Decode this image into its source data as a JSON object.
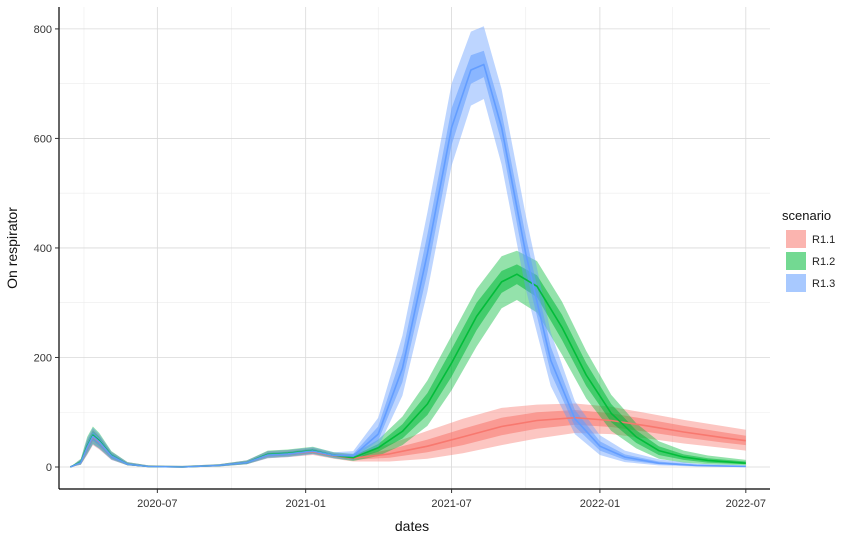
{
  "chart_data": {
    "type": "area",
    "xlabel": "dates",
    "ylabel": "On respirator",
    "x_range": [
      "2020-03-01",
      "2022-07-31"
    ],
    "ylim": [
      0,
      840
    ],
    "x_ticks": [
      "2020-07-01",
      "2021-01-01",
      "2021-07-01",
      "2022-01-01",
      "2022-07-01"
    ],
    "x_tick_labels": [
      "2020-07",
      "2021-01",
      "2021-07",
      "2022-01",
      "2022-07"
    ],
    "y_ticks": [
      0,
      200,
      400,
      600,
      800
    ],
    "y_tick_labels": [
      "0",
      "200",
      "400",
      "600",
      "800"
    ],
    "grid": true,
    "legend": {
      "title": "scenario",
      "placement": "right"
    },
    "series": [
      {
        "name": "R1.1",
        "color": "#F8766D",
        "points": [
          {
            "date": "2020-03-15",
            "median": 0,
            "inner_lo": 0,
            "inner_hi": 0,
            "outer_lo": 0,
            "outer_hi": 0
          },
          {
            "date": "2020-03-28",
            "median": 8,
            "inner_lo": 6,
            "inner_hi": 11,
            "outer_lo": 4,
            "outer_hi": 14
          },
          {
            "date": "2020-04-05",
            "median": 35,
            "inner_lo": 28,
            "inner_hi": 42,
            "outer_lo": 22,
            "outer_hi": 50
          },
          {
            "date": "2020-04-12",
            "median": 55,
            "inner_lo": 48,
            "inner_hi": 62,
            "outer_lo": 40,
            "outer_hi": 70
          },
          {
            "date": "2020-04-20",
            "median": 45,
            "inner_lo": 38,
            "inner_hi": 52,
            "outer_lo": 32,
            "outer_hi": 58
          },
          {
            "date": "2020-05-05",
            "median": 20,
            "inner_lo": 16,
            "inner_hi": 24,
            "outer_lo": 13,
            "outer_hi": 28
          },
          {
            "date": "2020-05-25",
            "median": 5,
            "inner_lo": 4,
            "inner_hi": 7,
            "outer_lo": 3,
            "outer_hi": 9
          },
          {
            "date": "2020-06-20",
            "median": 1,
            "inner_lo": 0,
            "inner_hi": 2,
            "outer_lo": 0,
            "outer_hi": 3
          },
          {
            "date": "2020-08-01",
            "median": 0,
            "inner_lo": 0,
            "inner_hi": 1,
            "outer_lo": 0,
            "outer_hi": 2
          },
          {
            "date": "2020-09-15",
            "median": 3,
            "inner_lo": 2,
            "inner_hi": 4,
            "outer_lo": 1,
            "outer_hi": 5
          },
          {
            "date": "2020-10-20",
            "median": 8,
            "inner_lo": 6,
            "inner_hi": 10,
            "outer_lo": 5,
            "outer_hi": 12
          },
          {
            "date": "2020-11-15",
            "median": 22,
            "inner_lo": 19,
            "inner_hi": 25,
            "outer_lo": 16,
            "outer_hi": 29
          },
          {
            "date": "2020-12-10",
            "median": 24,
            "inner_lo": 21,
            "inner_hi": 27,
            "outer_lo": 18,
            "outer_hi": 31
          },
          {
            "date": "2021-01-10",
            "median": 28,
            "inner_lo": 25,
            "inner_hi": 31,
            "outer_lo": 22,
            "outer_hi": 35
          },
          {
            "date": "2021-02-05",
            "median": 20,
            "inner_lo": 18,
            "inner_hi": 23,
            "outer_lo": 15,
            "outer_hi": 26
          },
          {
            "date": "2021-03-01",
            "median": 16,
            "inner_lo": 13,
            "inner_hi": 19,
            "outer_lo": 10,
            "outer_hi": 23
          },
          {
            "date": "2021-04-15",
            "median": 24,
            "inner_lo": 17,
            "inner_hi": 32,
            "outer_lo": 10,
            "outer_hi": 42
          },
          {
            "date": "2021-06-01",
            "median": 38,
            "inner_lo": 27,
            "inner_hi": 50,
            "outer_lo": 15,
            "outer_hi": 66
          },
          {
            "date": "2021-07-15",
            "median": 55,
            "inner_lo": 40,
            "inner_hi": 70,
            "outer_lo": 25,
            "outer_hi": 88
          },
          {
            "date": "2021-09-01",
            "median": 74,
            "inner_lo": 58,
            "inner_hi": 90,
            "outer_lo": 40,
            "outer_hi": 108
          },
          {
            "date": "2021-10-15",
            "median": 85,
            "inner_lo": 70,
            "inner_hi": 100,
            "outer_lo": 52,
            "outer_hi": 114
          },
          {
            "date": "2021-12-01",
            "median": 90,
            "inner_lo": 77,
            "inner_hi": 104,
            "outer_lo": 62,
            "outer_hi": 116
          },
          {
            "date": "2022-01-15",
            "median": 85,
            "inner_lo": 73,
            "inner_hi": 98,
            "outer_lo": 60,
            "outer_hi": 110
          },
          {
            "date": "2022-03-01",
            "median": 75,
            "inner_lo": 64,
            "inner_hi": 87,
            "outer_lo": 52,
            "outer_hi": 98
          },
          {
            "date": "2022-04-15",
            "median": 64,
            "inner_lo": 54,
            "inner_hi": 75,
            "outer_lo": 43,
            "outer_hi": 86
          },
          {
            "date": "2022-06-01",
            "median": 54,
            "inner_lo": 45,
            "inner_hi": 64,
            "outer_lo": 35,
            "outer_hi": 75
          },
          {
            "date": "2022-07-01",
            "median": 48,
            "inner_lo": 40,
            "inner_hi": 57,
            "outer_lo": 30,
            "outer_hi": 68
          }
        ]
      },
      {
        "name": "R1.2",
        "color": "#00BA38",
        "points": [
          {
            "date": "2020-03-15",
            "median": 0,
            "inner_lo": 0,
            "inner_hi": 0,
            "outer_lo": 0,
            "outer_hi": 0
          },
          {
            "date": "2020-03-28",
            "median": 9,
            "inner_lo": 7,
            "inner_hi": 12,
            "outer_lo": 4,
            "outer_hi": 15
          },
          {
            "date": "2020-04-05",
            "median": 38,
            "inner_lo": 30,
            "inner_hi": 46,
            "outer_lo": 24,
            "outer_hi": 55
          },
          {
            "date": "2020-04-12",
            "median": 58,
            "inner_lo": 50,
            "inner_hi": 66,
            "outer_lo": 42,
            "outer_hi": 74
          },
          {
            "date": "2020-04-20",
            "median": 48,
            "inner_lo": 40,
            "inner_hi": 55,
            "outer_lo": 34,
            "outer_hi": 62
          },
          {
            "date": "2020-05-05",
            "median": 21,
            "inner_lo": 17,
            "inner_hi": 25,
            "outer_lo": 14,
            "outer_hi": 29
          },
          {
            "date": "2020-05-25",
            "median": 5,
            "inner_lo": 4,
            "inner_hi": 7,
            "outer_lo": 3,
            "outer_hi": 9
          },
          {
            "date": "2020-06-20",
            "median": 1,
            "inner_lo": 0,
            "inner_hi": 2,
            "outer_lo": 0,
            "outer_hi": 3
          },
          {
            "date": "2020-08-01",
            "median": 0,
            "inner_lo": 0,
            "inner_hi": 1,
            "outer_lo": 0,
            "outer_hi": 2
          },
          {
            "date": "2020-09-15",
            "median": 3,
            "inner_lo": 2,
            "inner_hi": 4,
            "outer_lo": 1,
            "outer_hi": 5
          },
          {
            "date": "2020-10-20",
            "median": 8,
            "inner_lo": 6,
            "inner_hi": 10,
            "outer_lo": 5,
            "outer_hi": 12
          },
          {
            "date": "2020-11-15",
            "median": 23,
            "inner_lo": 20,
            "inner_hi": 26,
            "outer_lo": 17,
            "outer_hi": 30
          },
          {
            "date": "2020-12-10",
            "median": 25,
            "inner_lo": 22,
            "inner_hi": 28,
            "outer_lo": 19,
            "outer_hi": 32
          },
          {
            "date": "2021-01-10",
            "median": 30,
            "inner_lo": 27,
            "inner_hi": 33,
            "outer_lo": 24,
            "outer_hi": 37
          },
          {
            "date": "2021-02-05",
            "median": 21,
            "inner_lo": 19,
            "inner_hi": 24,
            "outer_lo": 16,
            "outer_hi": 27
          },
          {
            "date": "2021-03-01",
            "median": 17,
            "inner_lo": 14,
            "inner_hi": 20,
            "outer_lo": 11,
            "outer_hi": 24
          },
          {
            "date": "2021-04-01",
            "median": 35,
            "inner_lo": 28,
            "inner_hi": 42,
            "outer_lo": 20,
            "outer_hi": 50
          },
          {
            "date": "2021-05-01",
            "median": 65,
            "inner_lo": 52,
            "inner_hi": 78,
            "outer_lo": 40,
            "outer_hi": 92
          },
          {
            "date": "2021-06-01",
            "median": 115,
            "inner_lo": 95,
            "inner_hi": 135,
            "outer_lo": 75,
            "outer_hi": 158
          },
          {
            "date": "2021-07-01",
            "median": 190,
            "inner_lo": 165,
            "inner_hi": 215,
            "outer_lo": 140,
            "outer_hi": 240
          },
          {
            "date": "2021-08-01",
            "median": 275,
            "inner_lo": 250,
            "inner_hi": 300,
            "outer_lo": 220,
            "outer_hi": 325
          },
          {
            "date": "2021-09-01",
            "median": 338,
            "inner_lo": 318,
            "inner_hi": 358,
            "outer_lo": 290,
            "outer_hi": 385
          },
          {
            "date": "2021-09-20",
            "median": 352,
            "inner_lo": 334,
            "inner_hi": 370,
            "outer_lo": 305,
            "outer_hi": 395
          },
          {
            "date": "2021-10-15",
            "median": 330,
            "inner_lo": 310,
            "inner_hi": 350,
            "outer_lo": 282,
            "outer_hi": 376
          },
          {
            "date": "2021-11-15",
            "median": 255,
            "inner_lo": 232,
            "inner_hi": 278,
            "outer_lo": 205,
            "outer_hi": 302
          },
          {
            "date": "2021-12-15",
            "median": 168,
            "inner_lo": 148,
            "inner_hi": 190,
            "outer_lo": 125,
            "outer_hi": 212
          },
          {
            "date": "2022-01-15",
            "median": 98,
            "inner_lo": 82,
            "inner_hi": 115,
            "outer_lo": 66,
            "outer_hi": 132
          },
          {
            "date": "2022-02-15",
            "median": 55,
            "inner_lo": 44,
            "inner_hi": 67,
            "outer_lo": 34,
            "outer_hi": 80
          },
          {
            "date": "2022-03-15",
            "median": 30,
            "inner_lo": 22,
            "inner_hi": 38,
            "outer_lo": 15,
            "outer_hi": 47
          },
          {
            "date": "2022-04-15",
            "median": 18,
            "inner_lo": 13,
            "inner_hi": 23,
            "outer_lo": 8,
            "outer_hi": 30
          },
          {
            "date": "2022-05-15",
            "median": 12,
            "inner_lo": 8,
            "inner_hi": 16,
            "outer_lo": 5,
            "outer_hi": 21
          },
          {
            "date": "2022-07-01",
            "median": 7,
            "inner_lo": 5,
            "inner_hi": 10,
            "outer_lo": 3,
            "outer_hi": 13
          }
        ]
      },
      {
        "name": "R1.3",
        "color": "#619CFF",
        "points": [
          {
            "date": "2020-03-15",
            "median": 0,
            "inner_lo": 0,
            "inner_hi": 0,
            "outer_lo": 0,
            "outer_hi": 0
          },
          {
            "date": "2020-03-28",
            "median": 8,
            "inner_lo": 6,
            "inner_hi": 11,
            "outer_lo": 4,
            "outer_hi": 14
          },
          {
            "date": "2020-04-05",
            "median": 36,
            "inner_lo": 29,
            "inner_hi": 44,
            "outer_lo": 23,
            "outer_hi": 52
          },
          {
            "date": "2020-04-12",
            "median": 56,
            "inner_lo": 49,
            "inner_hi": 64,
            "outer_lo": 41,
            "outer_hi": 72
          },
          {
            "date": "2020-04-20",
            "median": 46,
            "inner_lo": 39,
            "inner_hi": 53,
            "outer_lo": 33,
            "outer_hi": 60
          },
          {
            "date": "2020-05-05",
            "median": 20,
            "inner_lo": 16,
            "inner_hi": 24,
            "outer_lo": 13,
            "outer_hi": 28
          },
          {
            "date": "2020-05-25",
            "median": 5,
            "inner_lo": 4,
            "inner_hi": 7,
            "outer_lo": 3,
            "outer_hi": 9
          },
          {
            "date": "2020-06-20",
            "median": 1,
            "inner_lo": 0,
            "inner_hi": 2,
            "outer_lo": 0,
            "outer_hi": 3
          },
          {
            "date": "2020-08-01",
            "median": 0,
            "inner_lo": 0,
            "inner_hi": 1,
            "outer_lo": 0,
            "outer_hi": 2
          },
          {
            "date": "2020-09-15",
            "median": 3,
            "inner_lo": 2,
            "inner_hi": 4,
            "outer_lo": 1,
            "outer_hi": 5
          },
          {
            "date": "2020-10-20",
            "median": 8,
            "inner_lo": 6,
            "inner_hi": 10,
            "outer_lo": 5,
            "outer_hi": 12
          },
          {
            "date": "2020-11-15",
            "median": 22,
            "inner_lo": 19,
            "inner_hi": 25,
            "outer_lo": 16,
            "outer_hi": 29
          },
          {
            "date": "2020-12-10",
            "median": 24,
            "inner_lo": 21,
            "inner_hi": 27,
            "outer_lo": 18,
            "outer_hi": 31
          },
          {
            "date": "2021-01-10",
            "median": 29,
            "inner_lo": 26,
            "inner_hi": 32,
            "outer_lo": 23,
            "outer_hi": 36
          },
          {
            "date": "2021-02-05",
            "median": 21,
            "inner_lo": 19,
            "inner_hi": 24,
            "outer_lo": 16,
            "outer_hi": 27
          },
          {
            "date": "2021-03-01",
            "median": 20,
            "inner_lo": 16,
            "inner_hi": 24,
            "outer_lo": 12,
            "outer_hi": 29
          },
          {
            "date": "2021-04-01",
            "median": 60,
            "inner_lo": 48,
            "inner_hi": 74,
            "outer_lo": 36,
            "outer_hi": 90
          },
          {
            "date": "2021-05-01",
            "median": 180,
            "inner_lo": 155,
            "inner_hi": 208,
            "outer_lo": 130,
            "outer_hi": 240
          },
          {
            "date": "2021-06-01",
            "median": 390,
            "inner_lo": 355,
            "inner_hi": 425,
            "outer_lo": 320,
            "outer_hi": 465
          },
          {
            "date": "2021-07-01",
            "median": 620,
            "inner_lo": 588,
            "inner_hi": 655,
            "outer_lo": 550,
            "outer_hi": 700
          },
          {
            "date": "2021-07-25",
            "median": 725,
            "inner_lo": 700,
            "inner_hi": 752,
            "outer_lo": 660,
            "outer_hi": 795
          },
          {
            "date": "2021-08-10",
            "median": 735,
            "inner_lo": 712,
            "inner_hi": 760,
            "outer_lo": 672,
            "outer_hi": 805
          },
          {
            "date": "2021-09-01",
            "median": 620,
            "inner_lo": 592,
            "inner_hi": 648,
            "outer_lo": 552,
            "outer_hi": 690
          },
          {
            "date": "2021-10-01",
            "median": 390,
            "inner_lo": 360,
            "inner_hi": 422,
            "outer_lo": 325,
            "outer_hi": 460
          },
          {
            "date": "2021-11-01",
            "median": 195,
            "inner_lo": 172,
            "inner_hi": 220,
            "outer_lo": 148,
            "outer_hi": 246
          },
          {
            "date": "2021-12-01",
            "median": 88,
            "inner_lo": 74,
            "inner_hi": 104,
            "outer_lo": 60,
            "outer_hi": 120
          },
          {
            "date": "2022-01-01",
            "median": 38,
            "inner_lo": 30,
            "inner_hi": 47,
            "outer_lo": 22,
            "outer_hi": 58
          },
          {
            "date": "2022-02-01",
            "median": 18,
            "inner_lo": 13,
            "inner_hi": 23,
            "outer_lo": 9,
            "outer_hi": 30
          },
          {
            "date": "2022-03-15",
            "median": 7,
            "inner_lo": 5,
            "inner_hi": 10,
            "outer_lo": 3,
            "outer_hi": 14
          },
          {
            "date": "2022-05-01",
            "median": 3,
            "inner_lo": 2,
            "inner_hi": 4,
            "outer_lo": 1,
            "outer_hi": 6
          },
          {
            "date": "2022-07-01",
            "median": 1,
            "inner_lo": 0,
            "inner_hi": 2,
            "outer_lo": 0,
            "outer_hi": 3
          }
        ]
      }
    ]
  }
}
